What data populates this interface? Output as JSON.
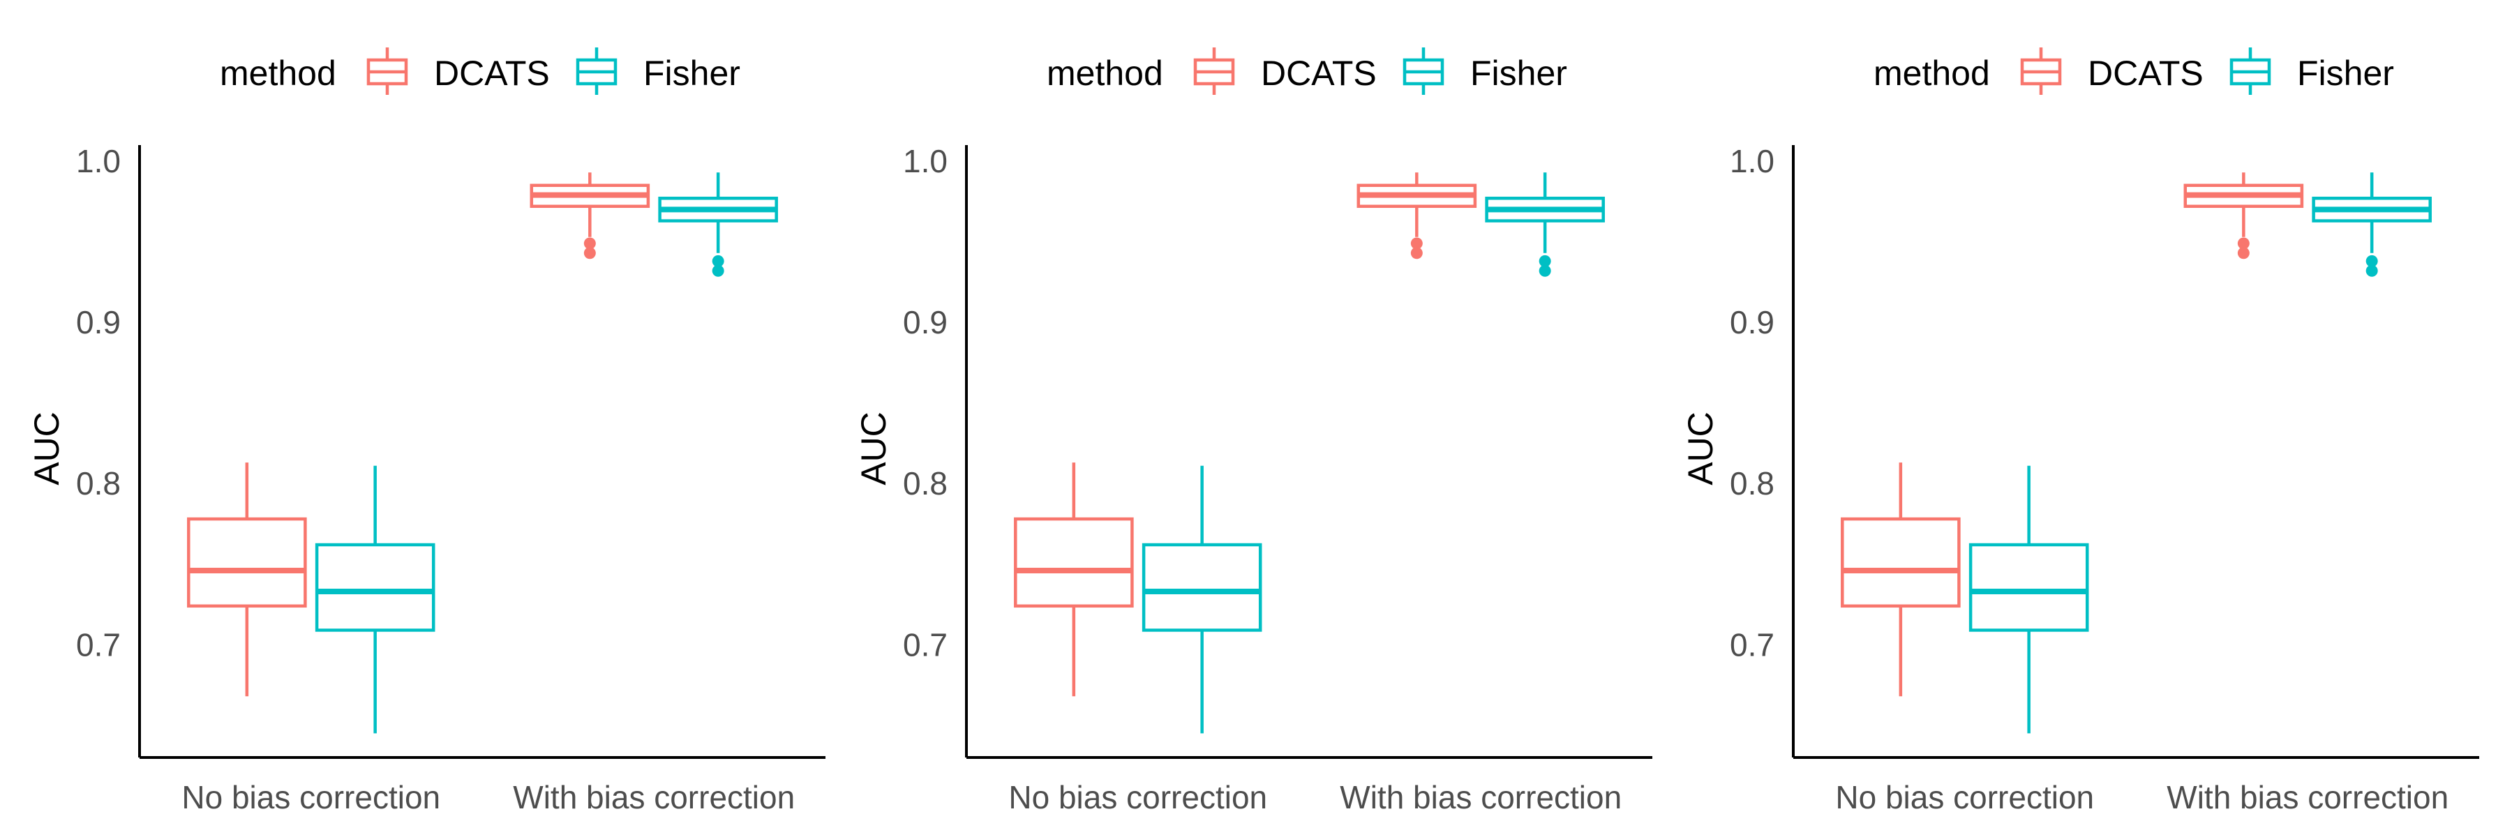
{
  "legend": {
    "title": "method",
    "items": [
      {
        "label": "DCATS",
        "color": "#F8766D"
      },
      {
        "label": "Fisher",
        "color": "#00BFC4"
      }
    ]
  },
  "chart_data": [
    {
      "type": "box",
      "ylabel": "AUC",
      "ylim": [
        0.63,
        1.01
      ],
      "yticks": [
        0.7,
        0.8,
        0.9,
        1.0
      ],
      "categories": [
        "No bias correction",
        "With bias correction"
      ],
      "legend_position": "top",
      "grid": false,
      "series": [
        {
          "name": "DCATS",
          "color": "#F8766D",
          "boxes": [
            {
              "min": 0.668,
              "q1": 0.724,
              "median": 0.746,
              "q3": 0.778,
              "max": 0.813,
              "outliers": []
            },
            {
              "min": 0.953,
              "q1": 0.972,
              "median": 0.979,
              "q3": 0.985,
              "max": 0.993,
              "outliers": [
                0.949,
                0.943
              ]
            }
          ]
        },
        {
          "name": "Fisher",
          "color": "#00BFC4",
          "boxes": [
            {
              "min": 0.645,
              "q1": 0.709,
              "median": 0.733,
              "q3": 0.762,
              "max": 0.811,
              "outliers": []
            },
            {
              "min": 0.943,
              "q1": 0.963,
              "median": 0.97,
              "q3": 0.977,
              "max": 0.993,
              "outliers": [
                0.938,
                0.932
              ]
            }
          ]
        }
      ]
    },
    {
      "type": "box",
      "ylabel": "AUC",
      "ylim": [
        0.63,
        1.01
      ],
      "yticks": [
        0.7,
        0.8,
        0.9,
        1.0
      ],
      "categories": [
        "No bias correction",
        "With bias correction"
      ],
      "legend_position": "top",
      "grid": false,
      "series": [
        {
          "name": "DCATS",
          "color": "#F8766D",
          "boxes": [
            {
              "min": 0.668,
              "q1": 0.724,
              "median": 0.746,
              "q3": 0.778,
              "max": 0.813,
              "outliers": []
            },
            {
              "min": 0.953,
              "q1": 0.972,
              "median": 0.979,
              "q3": 0.985,
              "max": 0.993,
              "outliers": [
                0.949,
                0.943
              ]
            }
          ]
        },
        {
          "name": "Fisher",
          "color": "#00BFC4",
          "boxes": [
            {
              "min": 0.645,
              "q1": 0.709,
              "median": 0.733,
              "q3": 0.762,
              "max": 0.811,
              "outliers": []
            },
            {
              "min": 0.943,
              "q1": 0.963,
              "median": 0.97,
              "q3": 0.977,
              "max": 0.993,
              "outliers": [
                0.938,
                0.932
              ]
            }
          ]
        }
      ]
    },
    {
      "type": "box",
      "ylabel": "AUC",
      "ylim": [
        0.63,
        1.01
      ],
      "yticks": [
        0.7,
        0.8,
        0.9,
        1.0
      ],
      "categories": [
        "No bias correction",
        "With bias correction"
      ],
      "legend_position": "top",
      "grid": false,
      "series": [
        {
          "name": "DCATS",
          "color": "#F8766D",
          "boxes": [
            {
              "min": 0.668,
              "q1": 0.724,
              "median": 0.746,
              "q3": 0.778,
              "max": 0.813,
              "outliers": []
            },
            {
              "min": 0.953,
              "q1": 0.972,
              "median": 0.979,
              "q3": 0.985,
              "max": 0.993,
              "outliers": [
                0.949,
                0.943
              ]
            }
          ]
        },
        {
          "name": "Fisher",
          "color": "#00BFC4",
          "boxes": [
            {
              "min": 0.645,
              "q1": 0.709,
              "median": 0.733,
              "q3": 0.762,
              "max": 0.811,
              "outliers": []
            },
            {
              "min": 0.943,
              "q1": 0.963,
              "median": 0.97,
              "q3": 0.977,
              "max": 0.993,
              "outliers": [
                0.938,
                0.932
              ]
            }
          ]
        }
      ]
    }
  ]
}
